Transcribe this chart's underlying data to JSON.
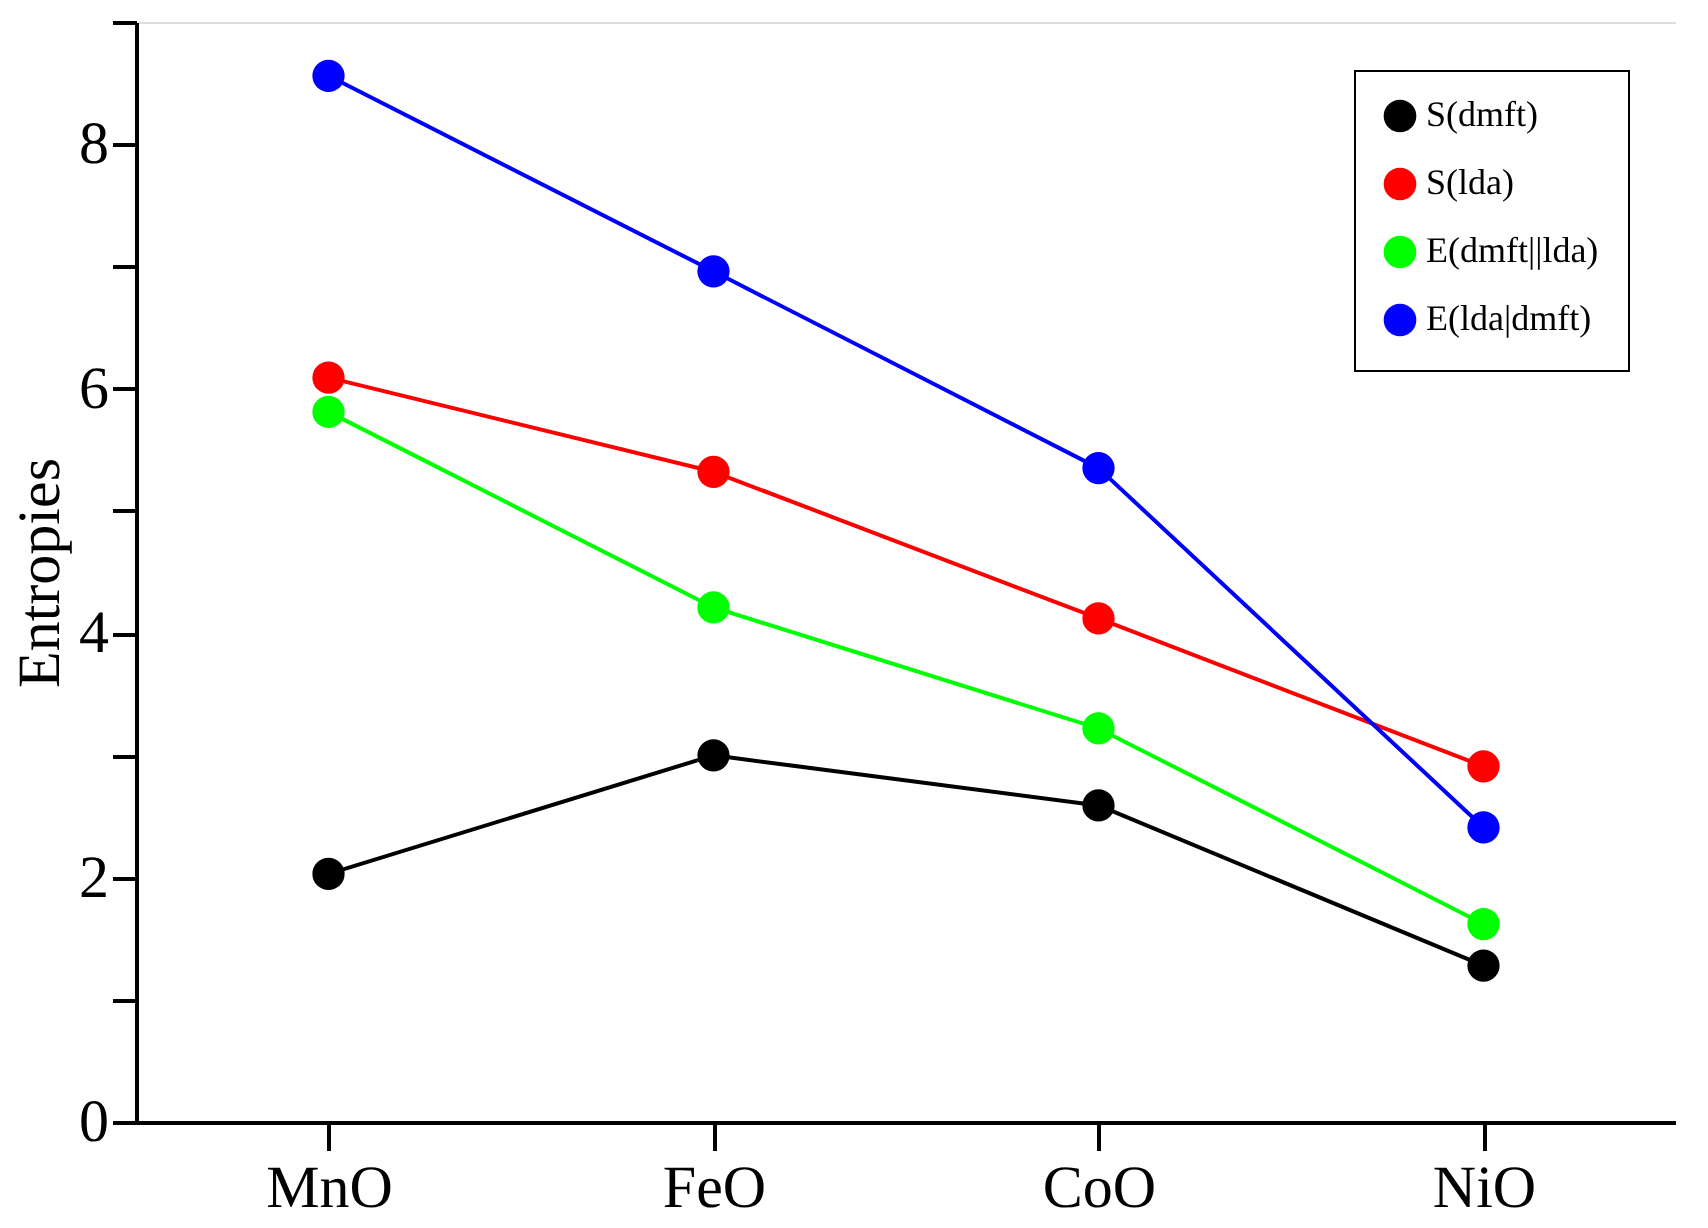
{
  "chart_data": {
    "type": "line",
    "ylabel": "Entropies",
    "categories": [
      "MnO",
      "FeO",
      "CoO",
      "NiO"
    ],
    "series": [
      {
        "name": "S(dmft)",
        "color": "#000000",
        "values": [
          2.03,
          3.0,
          2.59,
          1.28
        ]
      },
      {
        "name": "S(lda)",
        "color": "#ff0000",
        "values": [
          6.09,
          5.32,
          4.12,
          2.91
        ]
      },
      {
        "name": "E(dmft||lda)",
        "color": "#00ff00",
        "values": [
          5.81,
          4.21,
          3.22,
          1.62
        ]
      },
      {
        "name": "E(lda|dmft)",
        "color": "#0000ff",
        "values": [
          8.56,
          6.96,
          5.35,
          2.41
        ]
      }
    ],
    "ylim": [
      0,
      9
    ],
    "yticks": [
      0,
      {
        "value": 1,
        "label": null
      },
      2,
      {
        "value": 3,
        "label": null
      },
      4,
      {
        "value": 5,
        "label": null
      },
      6,
      {
        "value": 7,
        "label": null
      },
      8,
      {
        "value": 9,
        "label": null
      }
    ],
    "grid": false,
    "legend": "top right",
    "marker": "circle",
    "line_style": "solid"
  }
}
